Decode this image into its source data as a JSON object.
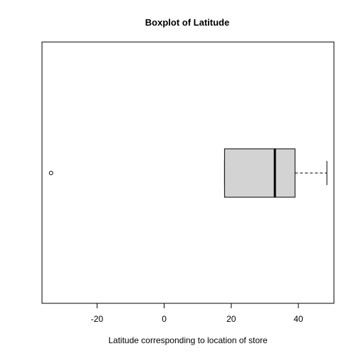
{
  "chart_data": {
    "type": "boxplot",
    "orientation": "horizontal",
    "title": "Boxplot of Latitude",
    "xlabel": "Latitude corresponding to location of store",
    "ylabel": "",
    "xlim": [
      -36.4,
      50.6
    ],
    "xticks": [
      -20,
      0,
      20,
      40
    ],
    "grid": false,
    "box": {
      "whisker_low": 18,
      "q1": 18,
      "median": 33,
      "q3": 39,
      "whisker_high": 48.5,
      "outliers": [
        -33.7
      ]
    },
    "colors": {
      "box_fill": "#d3d3d3",
      "stroke": "#000000",
      "background": "#ffffff"
    }
  }
}
